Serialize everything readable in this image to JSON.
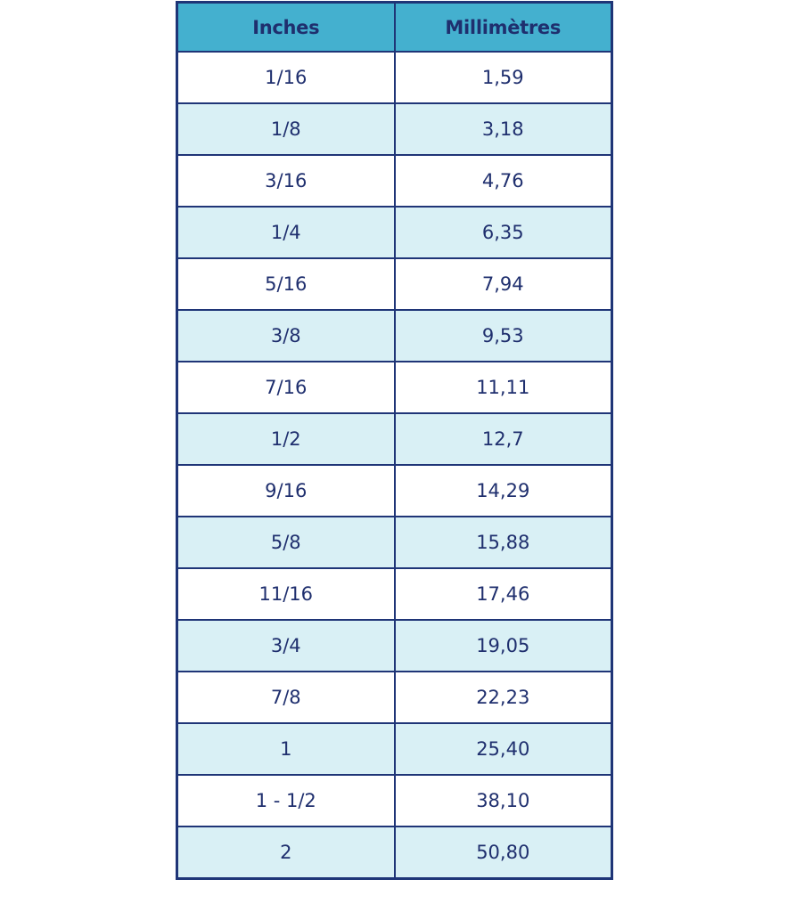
{
  "table": {
    "headers": [
      "Inches",
      "Millimètres"
    ],
    "rows": [
      [
        "1/16",
        "1,59"
      ],
      [
        "1/8",
        "3,18"
      ],
      [
        "3/16",
        "4,76"
      ],
      [
        "1/4",
        "6,35"
      ],
      [
        "5/16",
        "7,94"
      ],
      [
        "3/8",
        "9,53"
      ],
      [
        "7/16",
        "11,11"
      ],
      [
        "1/2",
        "12,7"
      ],
      [
        "9/16",
        "14,29"
      ],
      [
        "5/8",
        "15,88"
      ],
      [
        "11/16",
        "17,46"
      ],
      [
        "3/4",
        "19,05"
      ],
      [
        "7/8",
        "22,23"
      ],
      [
        "1",
        "25,40"
      ],
      [
        "1 - 1/2",
        "38,10"
      ],
      [
        "2",
        "50,80"
      ]
    ]
  },
  "colors": {
    "header_bg": "#44b0cf",
    "alt_row_bg": "#d9f0f5",
    "border": "#1f3577",
    "text": "#1f2f6e"
  }
}
